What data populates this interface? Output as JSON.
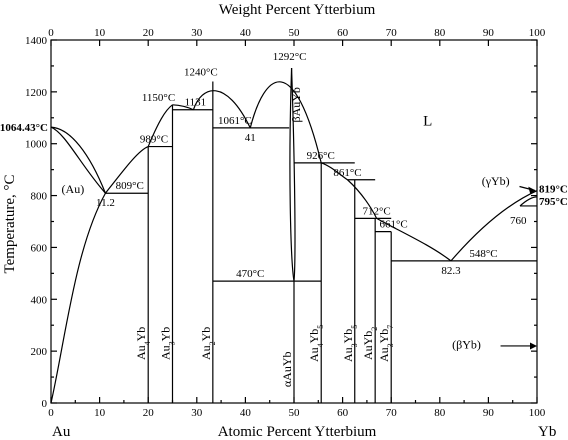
{
  "chart_data": {
    "type": "phase-diagram",
    "top_axis_title": "Weight Percent Ytterbium",
    "bottom_axis_title": "Atomic Percent Ytterbium",
    "y_axis_title": "Temperature, °C",
    "left_element": "Au",
    "right_element": "Yb",
    "xlim": [
      0,
      100
    ],
    "ylim": [
      0,
      1400
    ],
    "x_ticks": [
      0,
      10,
      20,
      30,
      40,
      50,
      60,
      70,
      80,
      90,
      100
    ],
    "y_ticks": [
      0,
      200,
      400,
      600,
      800,
      1000,
      1200,
      1400
    ],
    "top_ticks": [
      0,
      10,
      20,
      30,
      40,
      50,
      60,
      70,
      80,
      90,
      100
    ],
    "temperature_labels": [
      {
        "text": "1064.43°C",
        "x": 0,
        "y": 1064
      },
      {
        "text": "809°C",
        "x": 16.2,
        "y": 809
      },
      {
        "text": "989°C",
        "x": 21.2,
        "y": 989
      },
      {
        "text": "1150°C",
        "x": 25,
        "y": 1150
      },
      {
        "text": "1131",
        "x": 29.3,
        "y": 1131
      },
      {
        "text": "1240°C",
        "x": 33.3,
        "y": 1240
      },
      {
        "text": "1061°C",
        "x": 37,
        "y": 1061
      },
      {
        "text": "41",
        "x": 41,
        "y": 1061
      },
      {
        "text": "1292°C",
        "x": 49.5,
        "y": 1292
      },
      {
        "text": "926°C",
        "x": 55.5,
        "y": 926
      },
      {
        "text": "861°C",
        "x": 61,
        "y": 861
      },
      {
        "text": "712°C",
        "x": 67,
        "y": 712
      },
      {
        "text": "661°C",
        "x": 70.5,
        "y": 661
      },
      {
        "text": "470°C",
        "x": 41,
        "y": 470
      },
      {
        "text": "548°C",
        "x": 89,
        "y": 548
      },
      {
        "text": "11.2",
        "x": 11.2,
        "y": 809
      },
      {
        "text": "82.3",
        "x": 82.3,
        "y": 548
      },
      {
        "text": "760",
        "x": 97.8,
        "y": 760
      }
    ],
    "right_labels": [
      {
        "text": "819°C",
        "y": 819
      },
      {
        "text": "795°C",
        "y": 795
      }
    ],
    "phase_labels": {
      "liquid": "L",
      "au_solid": "(Au)",
      "gamma_yb": "(γYb)",
      "beta_yb": "(βYb)",
      "beta_auyb": "βAuYb"
    },
    "compounds": [
      {
        "name": "Au4Yb",
        "base": "Au",
        "sub1": "4",
        "mid": "Yb",
        "sub2": "",
        "x": 20
      },
      {
        "name": "Au3Yb",
        "base": "Au",
        "sub1": "3",
        "mid": "Yb",
        "sub2": "",
        "x": 25
      },
      {
        "name": "Au2Yb",
        "base": "Au",
        "sub1": "2",
        "mid": "Yb",
        "sub2": "",
        "x": 33.3
      },
      {
        "name": "αAuYb",
        "base": "αAuYb",
        "sub1": "",
        "mid": "",
        "sub2": "",
        "x": 50
      },
      {
        "name": "Au4Yb5",
        "base": "Au",
        "sub1": "4",
        "mid": "Yb",
        "sub2": "5",
        "x": 55.6
      },
      {
        "name": "Au3Yb5",
        "base": "Au",
        "sub1": "3",
        "mid": "Yb",
        "sub2": "5",
        "x": 62.5
      },
      {
        "name": "AuYb2",
        "base": "Au",
        "sub1": "",
        "mid": "Yb",
        "sub2": "2",
        "x": 66.7
      },
      {
        "name": "Au3Yb7",
        "base": "Au",
        "sub1": "3",
        "mid": "Yb",
        "sub2": "7",
        "x": 70
      }
    ]
  }
}
